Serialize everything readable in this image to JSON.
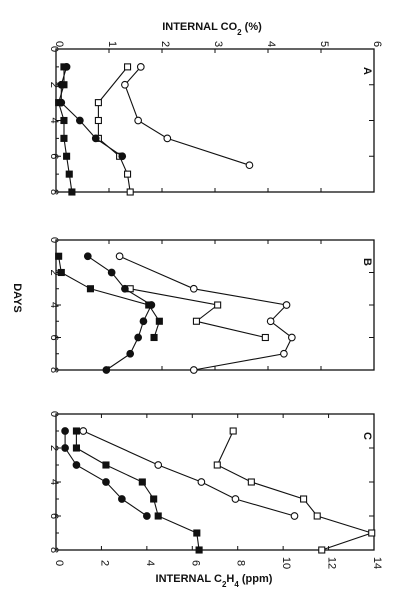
{
  "top_axis": {
    "label_prefix": "INTERNAL CO",
    "label_sub": "2",
    "label_suffix": " (%)",
    "ticks": [
      "0",
      "1",
      "2",
      "3",
      "4",
      "5",
      "6"
    ],
    "range": [
      0,
      6
    ]
  },
  "bottom_axis": {
    "label_prefix": "INTERNAL C",
    "label_sub1": "2",
    "label_mid": "H",
    "label_sub2": "4",
    "label_suffix": " (ppm)",
    "ticks": [
      "0",
      "2",
      "4",
      "6",
      "8",
      "10",
      "12",
      "14"
    ],
    "range": [
      0,
      14
    ]
  },
  "y_axis": {
    "label": "DAYS",
    "ticks": [
      "0",
      "2",
      "4",
      "6",
      "8"
    ],
    "range": [
      0,
      8
    ]
  },
  "chart_data": [
    {
      "type": "line",
      "panel": "A",
      "value_axis": "INTERNAL CO2 (%)",
      "xlim": [
        0,
        6
      ],
      "ylim": [
        0,
        8
      ],
      "series": [
        {
          "marker": "open-circle",
          "points": [
            [
              1.6,
              1
            ],
            [
              1.3,
              2
            ],
            [
              1.55,
              4
            ],
            [
              2.1,
              5
            ],
            [
              3.65,
              6.5
            ]
          ]
        },
        {
          "marker": "open-square",
          "points": [
            [
              1.35,
              1
            ],
            [
              0.8,
              3
            ],
            [
              0.8,
              4
            ],
            [
              0.8,
              5
            ],
            [
              1.2,
              6
            ],
            [
              1.35,
              7
            ],
            [
              1.4,
              8
            ]
          ]
        },
        {
          "marker": "filled-circle",
          "points": [
            [
              0.2,
              1
            ],
            [
              0.1,
              2
            ],
            [
              0.1,
              3
            ],
            [
              0.45,
              4
            ],
            [
              0.75,
              5
            ],
            [
              1.25,
              6
            ]
          ]
        },
        {
          "marker": "filled-square",
          "points": [
            [
              0.15,
              1
            ],
            [
              0.15,
              2
            ],
            [
              0.05,
              3
            ],
            [
              0.15,
              4
            ],
            [
              0.15,
              5
            ],
            [
              0.2,
              6
            ],
            [
              0.25,
              7
            ],
            [
              0.3,
              8
            ]
          ]
        }
      ]
    },
    {
      "type": "line",
      "panel": "B",
      "value_axis": "",
      "xlim": [
        0,
        6
      ],
      "ylim": [
        0,
        8
      ],
      "series": [
        {
          "marker": "open-circle",
          "points": [
            [
              1.2,
              1
            ],
            [
              2.6,
              3
            ],
            [
              4.35,
              4
            ],
            [
              4.05,
              5
            ],
            [
              4.45,
              6
            ],
            [
              4.3,
              7
            ],
            [
              2.6,
              8
            ]
          ]
        },
        {
          "marker": "open-square",
          "points": [
            [
              1.4,
              3
            ],
            [
              3.05,
              4
            ],
            [
              2.65,
              5
            ],
            [
              3.95,
              6
            ]
          ]
        },
        {
          "marker": "filled-circle",
          "points": [
            [
              0.6,
              1
            ],
            [
              1.05,
              2
            ],
            [
              1.3,
              3
            ],
            [
              1.8,
              4
            ],
            [
              1.65,
              5
            ],
            [
              1.55,
              6
            ],
            [
              1.4,
              7
            ],
            [
              0.95,
              8
            ]
          ]
        },
        {
          "marker": "filled-square",
          "points": [
            [
              0.05,
              1
            ],
            [
              0.1,
              2
            ],
            [
              0.65,
              3
            ],
            [
              1.75,
              4
            ],
            [
              1.95,
              5
            ],
            [
              1.85,
              6
            ]
          ]
        }
      ]
    },
    {
      "type": "line",
      "panel": "C",
      "value_axis": "INTERNAL C2H4 (ppm)",
      "xlim": [
        0,
        14
      ],
      "ylim": [
        0,
        8
      ],
      "series": [
        {
          "marker": "open-circle",
          "points": [
            [
              1.2,
              1
            ],
            [
              4.5,
              3
            ],
            [
              6.4,
              4
            ],
            [
              7.9,
              5
            ],
            [
              10.5,
              6
            ]
          ]
        },
        {
          "marker": "open-square",
          "points": [
            [
              7.8,
              1
            ],
            [
              7.1,
              3
            ],
            [
              8.6,
              4
            ],
            [
              10.9,
              5
            ],
            [
              11.5,
              6
            ],
            [
              13.9,
              7
            ],
            [
              11.7,
              8
            ]
          ]
        },
        {
          "marker": "filled-circle",
          "points": [
            [
              0.4,
              1
            ],
            [
              0.4,
              2
            ],
            [
              0.9,
              3
            ],
            [
              2.2,
              4
            ],
            [
              2.9,
              5
            ],
            [
              4.0,
              6
            ]
          ]
        },
        {
          "marker": "filled-square",
          "points": [
            [
              0.9,
              1
            ],
            [
              0.9,
              2
            ],
            [
              2.2,
              3
            ],
            [
              3.8,
              4
            ],
            [
              4.3,
              5
            ],
            [
              4.5,
              6
            ],
            [
              6.2,
              7
            ],
            [
              6.3,
              8
            ]
          ]
        }
      ]
    }
  ]
}
